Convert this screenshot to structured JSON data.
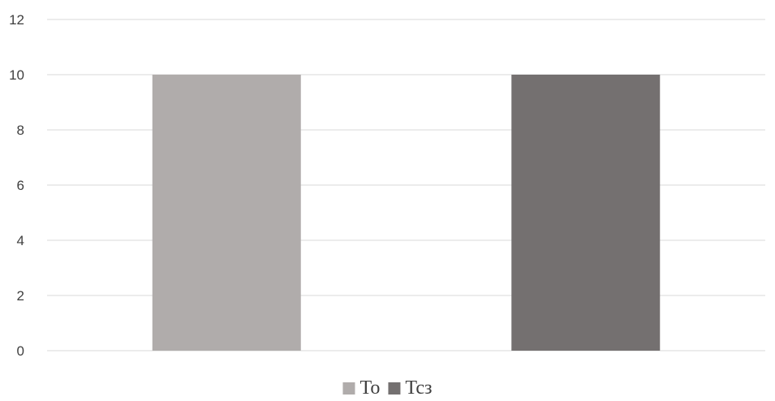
{
  "chart_data": {
    "type": "bar",
    "categories": [
      ""
    ],
    "series": [
      {
        "name": "To",
        "values": [
          10
        ],
        "color": "#b0acab"
      },
      {
        "name": "Tcз",
        "values": [
          10
        ],
        "color": "#747070"
      }
    ],
    "title": "",
    "xlabel": "",
    "ylabel": "",
    "ylim": [
      0,
      12
    ],
    "yticks": [
      "0",
      "2",
      "4",
      "6",
      "8",
      "10",
      "12"
    ],
    "grid": true,
    "legend_position": "bottom",
    "colors": {
      "grid": "#d9d9d9",
      "text": "#3f3f3f"
    }
  }
}
